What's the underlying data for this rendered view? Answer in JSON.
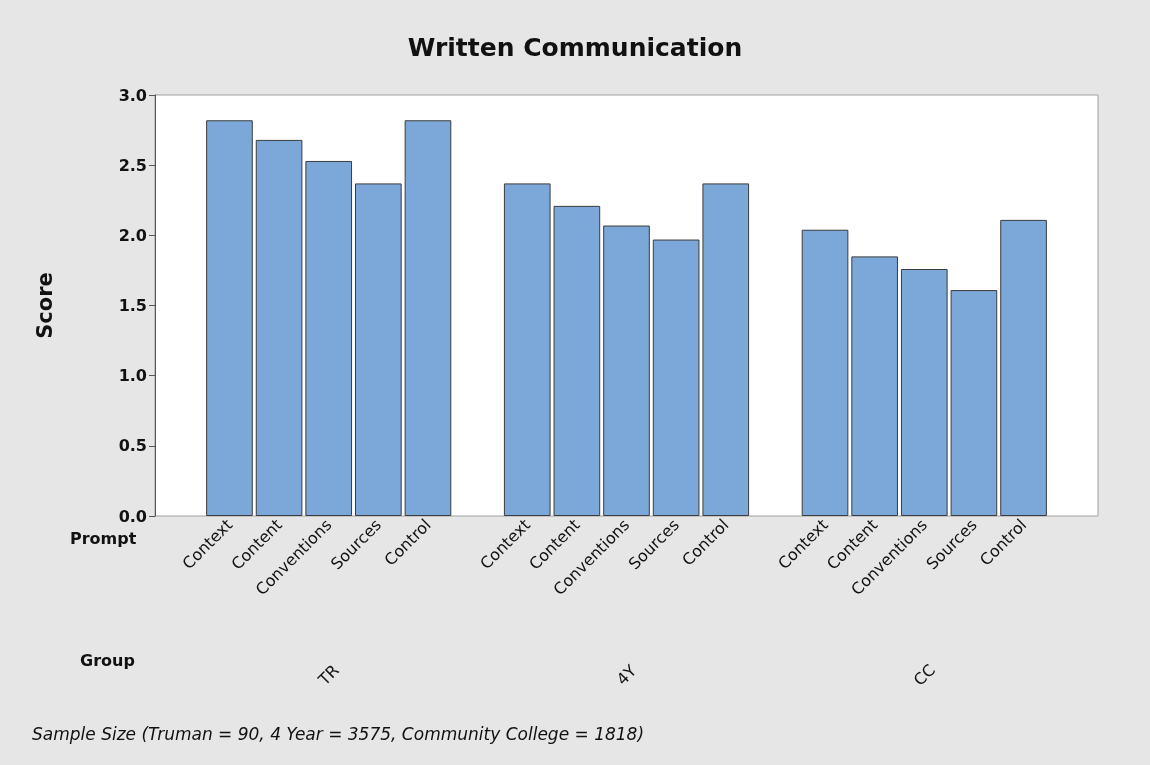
{
  "chart_data": {
    "type": "bar",
    "title": "Written Communication",
    "xlabel": "Prompt",
    "ylabel": "Score",
    "categories": [
      null,
      "Context",
      "Content",
      "Conventions",
      "Sources",
      "Control",
      null,
      "Context",
      "Content",
      "Conventions",
      "Sources",
      "Control",
      null,
      "Context",
      "Content",
      "Conventions",
      "Sources",
      "Control",
      null
    ],
    "values": [
      null,
      2.82,
      2.68,
      2.53,
      2.37,
      2.82,
      null,
      2.37,
      2.21,
      2.07,
      1.97,
      2.37,
      null,
      2.04,
      1.85,
      1.76,
      1.61,
      2.11,
      null
    ],
    "color": "#7ba7d9",
    "ylim": [
      0,
      3
    ],
    "yticks": [
      {
        "value": 0,
        "label": "0.0"
      },
      {
        "value": 0.5,
        "label": "0.5"
      },
      {
        "value": 1,
        "label": "1.0"
      },
      {
        "value": 1.5,
        "label": "1.5"
      },
      {
        "value": 2,
        "label": "2.0"
      },
      {
        "value": 2.5,
        "label": "2.5"
      },
      {
        "value": 3,
        "label": "3.0"
      }
    ],
    "grid": false,
    "annotations": [
      "Group",
      "TR",
      "4Y",
      "CC",
      "Sample Size (Truman = 90, 4 Year = 3575, Community College = 1818)"
    ]
  }
}
